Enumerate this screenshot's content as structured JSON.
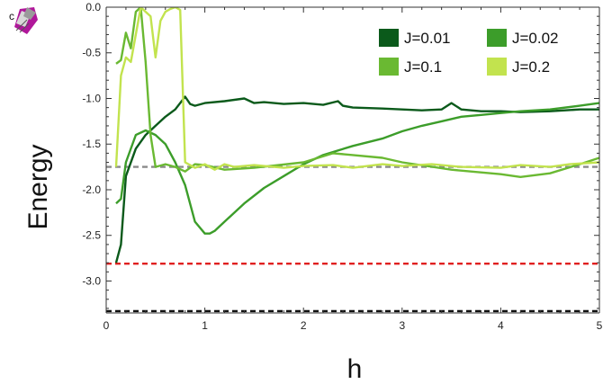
{
  "panel_label": "c",
  "logo_icon": "mathematica-spikey-icon",
  "chart_data": {
    "type": "line",
    "title": "",
    "xlabel": "h",
    "ylabel": "Energy",
    "xlim": [
      0,
      5
    ],
    "ylim": [
      -3.35,
      0.0
    ],
    "x_ticks": [
      0,
      1,
      2,
      3,
      4,
      5
    ],
    "x_tick_labels": [
      "0",
      "1",
      "2",
      "3",
      "4",
      "5"
    ],
    "y_ticks": [
      0.0,
      -0.5,
      -1.0,
      -1.5,
      -2.0,
      -2.5,
      -3.0
    ],
    "y_tick_labels": [
      "0.0",
      "-0.5",
      "-1.0",
      "-1.5",
      "-2.0",
      "-2.5",
      "-3.0"
    ],
    "grid": false,
    "legend_position": "top-right",
    "series": [
      {
        "name": "J=0.01",
        "color": "#0b5a1b",
        "x": [
          0.1,
          0.15,
          0.2,
          0.3,
          0.4,
          0.5,
          0.6,
          0.7,
          0.8,
          0.85,
          0.9,
          1.0,
          1.2,
          1.4,
          1.5,
          1.6,
          1.8,
          2.0,
          2.2,
          2.35,
          2.4,
          2.5,
          2.8,
          3.0,
          3.2,
          3.4,
          3.5,
          3.6,
          3.8,
          4.0,
          4.2,
          4.5,
          4.8,
          5.0
        ],
        "y": [
          -2.8,
          -2.6,
          -1.85,
          -1.55,
          -1.4,
          -1.3,
          -1.2,
          -1.12,
          -0.98,
          -1.06,
          -1.08,
          -1.05,
          -1.03,
          -1.0,
          -1.05,
          -1.04,
          -1.06,
          -1.05,
          -1.07,
          -1.03,
          -1.08,
          -1.1,
          -1.11,
          -1.12,
          -1.13,
          -1.12,
          -1.05,
          -1.12,
          -1.14,
          -1.14,
          -1.15,
          -1.14,
          -1.12,
          -1.12
        ]
      },
      {
        "name": "J=0.02",
        "color": "#3c9d2a",
        "x": [
          0.1,
          0.15,
          0.2,
          0.3,
          0.4,
          0.5,
          0.6,
          0.7,
          0.8,
          0.9,
          1.0,
          1.05,
          1.1,
          1.2,
          1.4,
          1.6,
          1.8,
          2.0,
          2.2,
          2.5,
          2.8,
          3.0,
          3.2,
          3.4,
          3.6,
          3.8,
          4.0,
          4.2,
          4.5,
          4.8,
          5.0
        ],
        "y": [
          -2.15,
          -2.1,
          -1.7,
          -1.4,
          -1.35,
          -1.4,
          -1.5,
          -1.7,
          -1.95,
          -2.35,
          -2.48,
          -2.48,
          -2.45,
          -2.35,
          -2.15,
          -1.98,
          -1.85,
          -1.72,
          -1.62,
          -1.52,
          -1.44,
          -1.36,
          -1.3,
          -1.25,
          -1.2,
          -1.18,
          -1.16,
          -1.14,
          -1.12,
          -1.08,
          -1.05
        ]
      },
      {
        "name": "J=0.1",
        "color": "#6ab932",
        "x": [
          0.1,
          0.15,
          0.2,
          0.25,
          0.3,
          0.35,
          0.4,
          0.45,
          0.5,
          0.6,
          0.7,
          0.8,
          0.9,
          1.0,
          1.2,
          1.5,
          2.0,
          2.3,
          2.5,
          2.8,
          3.0,
          3.5,
          4.0,
          4.2,
          4.5,
          4.8,
          5.0
        ],
        "y": [
          -0.62,
          -0.58,
          -0.28,
          -0.45,
          -0.05,
          0.0,
          -0.6,
          -1.4,
          -1.75,
          -1.72,
          -1.75,
          -1.8,
          -1.72,
          -1.73,
          -1.78,
          -1.76,
          -1.7,
          -1.6,
          -1.62,
          -1.65,
          -1.7,
          -1.78,
          -1.83,
          -1.86,
          -1.82,
          -1.72,
          -1.65
        ]
      },
      {
        "name": "J=0.2",
        "color": "#c2e34e",
        "x": [
          0.1,
          0.15,
          0.2,
          0.25,
          0.3,
          0.35,
          0.4,
          0.45,
          0.5,
          0.55,
          0.6,
          0.65,
          0.7,
          0.75,
          0.8,
          0.85,
          0.9,
          1.0,
          1.1,
          1.2,
          1.3,
          1.5,
          1.8,
          2.0,
          2.3,
          2.5,
          2.8,
          3.0,
          3.3,
          3.6,
          4.0,
          4.2,
          4.5,
          4.7,
          5.0
        ],
        "y": [
          -1.75,
          -0.75,
          -0.55,
          -0.6,
          -0.3,
          0.0,
          -0.05,
          -0.1,
          -0.55,
          -0.15,
          -0.05,
          -0.02,
          0.0,
          -0.03,
          -1.7,
          -1.73,
          -1.76,
          -1.72,
          -1.78,
          -1.72,
          -1.75,
          -1.73,
          -1.76,
          -1.74,
          -1.73,
          -1.76,
          -1.72,
          -1.74,
          -1.72,
          -1.75,
          -1.76,
          -1.73,
          -1.75,
          -1.72,
          -1.7
        ]
      }
    ],
    "reference_lines": [
      {
        "y": -1.75,
        "color": "#8a8a8a"
      },
      {
        "y": -2.81,
        "color": "#e02020"
      },
      {
        "y": -3.33,
        "color": "#111111"
      }
    ]
  }
}
